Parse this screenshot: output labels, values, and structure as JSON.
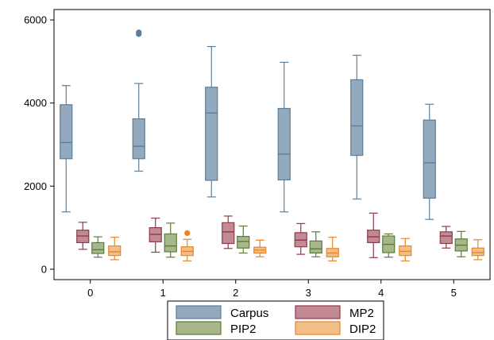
{
  "chart_data": {
    "type": "box",
    "title": "",
    "xlabel": "",
    "ylabel": "",
    "categories": [
      "0",
      "1",
      "2",
      "3",
      "4",
      "5"
    ],
    "ylim": [
      -250,
      6250
    ],
    "yticks": [
      0,
      2000,
      4000,
      6000
    ],
    "grid": false,
    "legend_position": "bottom",
    "series": [
      {
        "name": "Carpus",
        "color": "#5b7f9b",
        "fill": "#93a9bd",
        "boxes": [
          {
            "min": 1380,
            "q1": 2660,
            "median": 3050,
            "q3": 3960,
            "max": 4420,
            "outliers": []
          },
          {
            "min": 2360,
            "q1": 2660,
            "median": 2960,
            "q3": 3620,
            "max": 4470,
            "outliers": [
              5660,
              5700
            ]
          },
          {
            "min": 1740,
            "q1": 2140,
            "median": 3760,
            "q3": 4380,
            "max": 5360,
            "outliers": []
          },
          {
            "min": 1380,
            "q1": 2150,
            "median": 2770,
            "q3": 3870,
            "max": 4980,
            "outliers": []
          },
          {
            "min": 1690,
            "q1": 2740,
            "median": 3450,
            "q3": 4560,
            "max": 5150,
            "outliers": []
          },
          {
            "min": 1200,
            "q1": 1710,
            "median": 2560,
            "q3": 3590,
            "max": 3970,
            "outliers": []
          }
        ]
      },
      {
        "name": "MP2",
        "color": "#8c3a4d",
        "fill": "#c48a94",
        "boxes": [
          {
            "min": 480,
            "q1": 640,
            "median": 800,
            "q3": 940,
            "max": 1130,
            "outliers": []
          },
          {
            "min": 410,
            "q1": 660,
            "median": 840,
            "q3": 1000,
            "max": 1230,
            "outliers": []
          },
          {
            "min": 500,
            "q1": 620,
            "median": 900,
            "q3": 1120,
            "max": 1280,
            "outliers": []
          },
          {
            "min": 360,
            "q1": 540,
            "median": 700,
            "q3": 880,
            "max": 1100,
            "outliers": []
          },
          {
            "min": 280,
            "q1": 640,
            "median": 780,
            "q3": 940,
            "max": 1350,
            "outliers": []
          },
          {
            "min": 510,
            "q1": 620,
            "median": 800,
            "q3": 900,
            "max": 1030,
            "outliers": []
          }
        ]
      },
      {
        "name": "PIP2",
        "color": "#5d7a3a",
        "fill": "#a6b88a",
        "boxes": [
          {
            "min": 290,
            "q1": 380,
            "median": 470,
            "q3": 640,
            "max": 780,
            "outliers": []
          },
          {
            "min": 290,
            "q1": 420,
            "median": 560,
            "q3": 850,
            "max": 1110,
            "outliers": []
          },
          {
            "min": 390,
            "q1": 510,
            "median": 670,
            "q3": 790,
            "max": 1040,
            "outliers": []
          },
          {
            "min": 300,
            "q1": 390,
            "median": 490,
            "q3": 680,
            "max": 900,
            "outliers": []
          },
          {
            "min": 290,
            "q1": 400,
            "median": 600,
            "q3": 800,
            "max": 850,
            "outliers": []
          },
          {
            "min": 300,
            "q1": 440,
            "median": 580,
            "q3": 730,
            "max": 910,
            "outliers": []
          }
        ]
      },
      {
        "name": "DIP2",
        "color": "#e6862b",
        "fill": "#f4bf86",
        "boxes": [
          {
            "min": 230,
            "q1": 330,
            "median": 420,
            "q3": 560,
            "max": 770,
            "outliers": []
          },
          {
            "min": 200,
            "q1": 330,
            "median": 430,
            "q3": 540,
            "max": 720,
            "outliers": [
              870
            ]
          },
          {
            "min": 300,
            "q1": 390,
            "median": 460,
            "q3": 530,
            "max": 700,
            "outliers": []
          },
          {
            "min": 200,
            "q1": 300,
            "median": 390,
            "q3": 500,
            "max": 770,
            "outliers": []
          },
          {
            "min": 200,
            "q1": 330,
            "median": 430,
            "q3": 560,
            "max": 740,
            "outliers": []
          },
          {
            "min": 230,
            "q1": 330,
            "median": 400,
            "q3": 510,
            "max": 710,
            "outliers": []
          }
        ]
      }
    ]
  }
}
